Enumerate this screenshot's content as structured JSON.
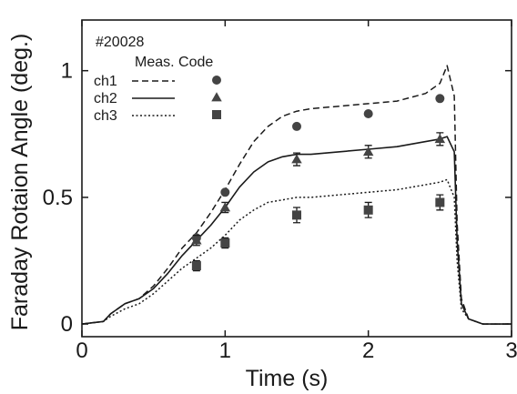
{
  "chart_data": {
    "type": "line",
    "title": "",
    "xlabel": "Time (s)",
    "ylabel": "Faraday Rotaion Angle (deg.)",
    "xlim": [
      0,
      3
    ],
    "ylim": [
      -0.05,
      1.2
    ],
    "x_ticks": [
      0,
      1,
      2,
      3
    ],
    "x_tick_labels": [
      "0",
      "1",
      "2",
      "3"
    ],
    "y_ticks": [
      0,
      0.5,
      1
    ],
    "y_tick_labels": [
      "0",
      "0.5",
      "1"
    ],
    "grid": false,
    "annotations": {
      "shot": "#20028",
      "legend_header": "Meas. Code"
    },
    "legend_position": "top-left",
    "series": [
      {
        "name": "ch1",
        "style": "dashed",
        "marker": "circle",
        "code_curve": {
          "x": [
            0.0,
            0.15,
            0.2,
            0.3,
            0.4,
            0.5,
            0.6,
            0.7,
            0.8,
            0.9,
            1.0,
            1.1,
            1.2,
            1.3,
            1.4,
            1.5,
            1.6,
            1.8,
            2.0,
            2.2,
            2.4,
            2.5,
            2.55,
            2.6,
            2.62,
            2.65,
            2.7,
            2.8,
            3.0
          ],
          "y": [
            0.0,
            0.01,
            0.04,
            0.08,
            0.1,
            0.15,
            0.22,
            0.3,
            0.36,
            0.44,
            0.53,
            0.63,
            0.72,
            0.78,
            0.82,
            0.84,
            0.85,
            0.86,
            0.87,
            0.88,
            0.91,
            0.95,
            1.02,
            0.9,
            0.4,
            0.1,
            0.02,
            0.0,
            0.0
          ]
        },
        "measurements": [
          {
            "x": 0.8,
            "y": 0.34,
            "err": 0.0
          },
          {
            "x": 1.0,
            "y": 0.52,
            "err": 0.0
          },
          {
            "x": 1.5,
            "y": 0.78,
            "err": 0.0
          },
          {
            "x": 2.0,
            "y": 0.83,
            "err": 0.0
          },
          {
            "x": 2.5,
            "y": 0.89,
            "err": 0.0
          }
        ]
      },
      {
        "name": "ch2",
        "style": "solid",
        "marker": "triangle",
        "code_curve": {
          "x": [
            0.0,
            0.15,
            0.2,
            0.3,
            0.4,
            0.5,
            0.6,
            0.7,
            0.8,
            0.9,
            1.0,
            1.1,
            1.2,
            1.3,
            1.4,
            1.5,
            1.6,
            1.8,
            2.0,
            2.2,
            2.4,
            2.5,
            2.55,
            2.6,
            2.62,
            2.65,
            2.7,
            2.8,
            3.0
          ],
          "y": [
            0.0,
            0.01,
            0.04,
            0.08,
            0.1,
            0.14,
            0.2,
            0.27,
            0.33,
            0.39,
            0.46,
            0.54,
            0.6,
            0.64,
            0.66,
            0.67,
            0.67,
            0.68,
            0.69,
            0.7,
            0.72,
            0.73,
            0.74,
            0.68,
            0.33,
            0.08,
            0.02,
            0.0,
            0.0
          ]
        },
        "measurements": [
          {
            "x": 0.8,
            "y": 0.33,
            "err": 0.02
          },
          {
            "x": 1.0,
            "y": 0.46,
            "err": 0.02
          },
          {
            "x": 1.5,
            "y": 0.65,
            "err": 0.025
          },
          {
            "x": 2.0,
            "y": 0.68,
            "err": 0.025
          },
          {
            "x": 2.5,
            "y": 0.73,
            "err": 0.025
          }
        ]
      },
      {
        "name": "ch3",
        "style": "dotted",
        "marker": "square",
        "code_curve": {
          "x": [
            0.0,
            0.15,
            0.2,
            0.3,
            0.4,
            0.5,
            0.6,
            0.7,
            0.8,
            0.9,
            1.0,
            1.1,
            1.2,
            1.3,
            1.4,
            1.5,
            1.6,
            1.8,
            2.0,
            2.2,
            2.4,
            2.5,
            2.55,
            2.6,
            2.62,
            2.65,
            2.7,
            2.8,
            3.0
          ],
          "y": [
            0.0,
            0.01,
            0.03,
            0.06,
            0.08,
            0.12,
            0.17,
            0.22,
            0.26,
            0.3,
            0.35,
            0.41,
            0.45,
            0.48,
            0.49,
            0.5,
            0.5,
            0.51,
            0.52,
            0.53,
            0.55,
            0.56,
            0.57,
            0.5,
            0.25,
            0.06,
            0.02,
            0.0,
            0.0
          ]
        },
        "measurements": [
          {
            "x": 0.8,
            "y": 0.23,
            "err": 0.02
          },
          {
            "x": 1.0,
            "y": 0.32,
            "err": 0.02
          },
          {
            "x": 1.5,
            "y": 0.43,
            "err": 0.03
          },
          {
            "x": 2.0,
            "y": 0.45,
            "err": 0.03
          },
          {
            "x": 2.5,
            "y": 0.48,
            "err": 0.03
          }
        ]
      }
    ]
  }
}
